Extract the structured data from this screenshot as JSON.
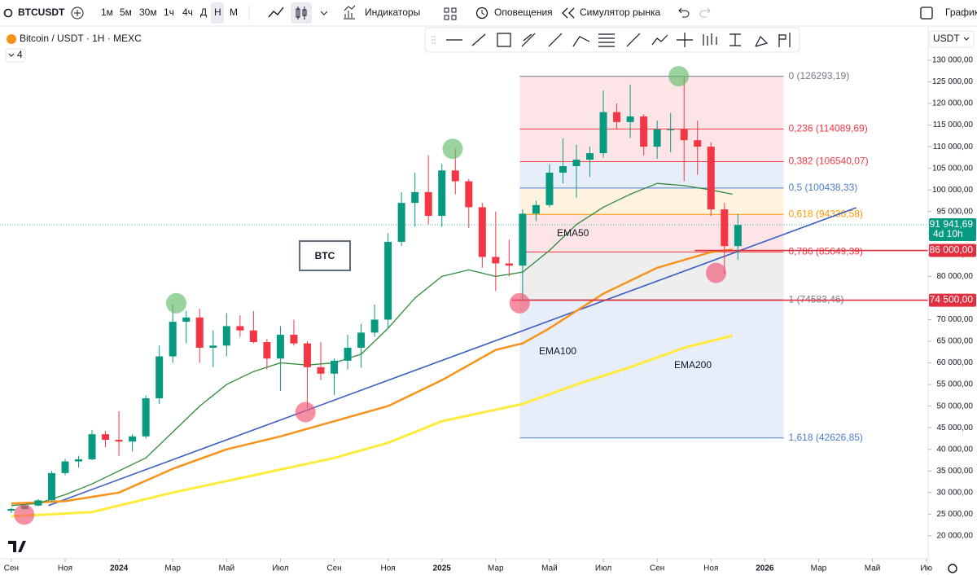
{
  "toolbar": {
    "symbol": "BTCUSDT",
    "intervals": [
      "1м",
      "5м",
      "30м",
      "1ч",
      "4ч",
      "Д",
      "Н",
      "М"
    ],
    "indicators": "Индикаторы",
    "alerts": "Оповещения",
    "replay": "Симулятор рынка",
    "layout": "График"
  },
  "legend": {
    "title": "Bitcoin / USDT · 1H · MEXC",
    "count": "4",
    "currency": "USDT"
  },
  "chart_data": {
    "type": "candlestick",
    "x": [
      0,
      0.5,
      1,
      1.5,
      2,
      2.5,
      3,
      3.5,
      4,
      4.5,
      5,
      5.5,
      6,
      6.5,
      7,
      7.5,
      8,
      8.5,
      9,
      9.5,
      10,
      10.5,
      11,
      11.5,
      12,
      12.5,
      13,
      13.5,
      14,
      14.5,
      15,
      15.5,
      16,
      16.5,
      17,
      17.5,
      18,
      18.5,
      19,
      19.5,
      20,
      20.5,
      21,
      21.5,
      22,
      22.5,
      23,
      23.5,
      24,
      24.5,
      25,
      25.5,
      26,
      26.5,
      27
    ],
    "open": [
      25800,
      26200,
      27000,
      28200,
      34500,
      37200,
      37700,
      43500,
      42200,
      41800,
      43000,
      51800,
      61500,
      69500,
      70500,
      63500,
      64000,
      68500,
      67500,
      64800,
      61000,
      66500,
      64500,
      59000,
      57500,
      60500,
      63500,
      67000,
      70000,
      88000,
      97000,
      99500,
      94000,
      104500,
      102000,
      96000,
      84500,
      83000,
      82500,
      94500,
      96500,
      104000,
      105500,
      107000,
      108500,
      118000,
      115700,
      117000,
      110000,
      114000,
      114000,
      111500,
      110000,
      95500,
      87000
    ],
    "high": [
      26500,
      27200,
      28500,
      35000,
      37800,
      38500,
      44500,
      44300,
      48800,
      43500,
      52500,
      64000,
      73500,
      72000,
      72500,
      67500,
      71500,
      71000,
      72000,
      65500,
      68500,
      70000,
      65000,
      64800,
      61000,
      66500,
      69000,
      73500,
      90000,
      99500,
      104000,
      108000,
      106000,
      109500,
      102500,
      97000,
      95000,
      88500,
      95500,
      97500,
      106000,
      111900,
      110500,
      110000,
      123000,
      120000,
      124400,
      117500,
      116000,
      117800,
      126200,
      116000,
      111000,
      97000,
      94500
    ],
    "low": [
      25200,
      26000,
      26800,
      28000,
      34000,
      35800,
      37500,
      40500,
      38500,
      39500,
      42500,
      50500,
      60000,
      64500,
      60000,
      59000,
      61500,
      66000,
      64500,
      58500,
      53500,
      64000,
      49500,
      56000,
      52600,
      58500,
      58900,
      66000,
      68000,
      87000,
      91500,
      92000,
      91500,
      99000,
      91200,
      82000,
      76600,
      80000,
      74500,
      92800,
      96000,
      101500,
      98200,
      103000,
      107500,
      114000,
      112000,
      108000,
      107200,
      108700,
      102000,
      103500,
      94000,
      80600,
      83800
    ],
    "close": [
      26200,
      27000,
      28200,
      34500,
      37200,
      37700,
      43500,
      42200,
      41800,
      43000,
      51800,
      61500,
      69500,
      70500,
      63500,
      64000,
      68500,
      67500,
      64800,
      61000,
      66500,
      64500,
      59000,
      57500,
      60500,
      63500,
      67000,
      70000,
      88000,
      97000,
      99500,
      94000,
      104500,
      102000,
      96000,
      84500,
      83000,
      82500,
      94500,
      96500,
      104000,
      105500,
      107000,
      108500,
      118000,
      115700,
      117000,
      110000,
      114000,
      114000,
      111500,
      110000,
      95500,
      87000,
      91900
    ],
    "up_color": "#089981",
    "down_color": "#f23645",
    "xlim": [
      -0.42,
      34.07
    ],
    "xticks": [
      {
        "value": 0,
        "label": "Сен"
      },
      {
        "value": 2,
        "label": "Ноя"
      },
      {
        "value": 4,
        "label": "2024"
      },
      {
        "value": 6,
        "label": "Мар"
      },
      {
        "value": 8,
        "label": "Май"
      },
      {
        "value": 10,
        "label": "Июл"
      },
      {
        "value": 12,
        "label": "Сен"
      },
      {
        "value": 14,
        "label": "Ноя"
      },
      {
        "value": 16,
        "label": "2025"
      },
      {
        "value": 18,
        "label": "Мар"
      },
      {
        "value": 20,
        "label": "Май"
      },
      {
        "value": 22,
        "label": "Июл"
      },
      {
        "value": 24,
        "label": "Сен"
      },
      {
        "value": 26,
        "label": "Ноя"
      },
      {
        "value": 28,
        "label": "2026"
      },
      {
        "value": 30,
        "label": "Мар"
      },
      {
        "value": 32,
        "label": "Май"
      },
      {
        "value": 34,
        "label": "Ию"
      }
    ],
    "ylim": [
      14700,
      137150
    ],
    "yticks": [
      {
        "value": 20000,
        "label": "20 000,00"
      },
      {
        "value": 25000,
        "label": "25 000,00"
      },
      {
        "value": 30000,
        "label": "30 000,00"
      },
      {
        "value": 35000,
        "label": "35 000,00"
      },
      {
        "value": 40000,
        "label": "40 000,00"
      },
      {
        "value": 45000,
        "label": "45 000,00"
      },
      {
        "value": 50000,
        "label": "50 000,00"
      },
      {
        "value": 55000,
        "label": "55 000,00"
      },
      {
        "value": 60000,
        "label": "60 000,00"
      },
      {
        "value": 65000,
        "label": "65 000,00"
      },
      {
        "value": 70000,
        "label": "70 000,00"
      },
      {
        "value": 75000,
        "label": "75 000,00"
      },
      {
        "value": 80000,
        "label": "80 000,00"
      },
      {
        "value": 85000,
        "label": "85 000,00"
      },
      {
        "value": 90000,
        "label": "90 000,00"
      },
      {
        "value": 95000,
        "label": "95 000,00"
      },
      {
        "value": 100000,
        "label": "100 000,00"
      },
      {
        "value": 105000,
        "label": "105 000,00"
      },
      {
        "value": 110000,
        "label": "110 000,00"
      },
      {
        "value": 115000,
        "label": "115 000,00"
      },
      {
        "value": 120000,
        "label": "120 000,00"
      },
      {
        "value": 125000,
        "label": "125 000,00"
      },
      {
        "value": 130000,
        "label": "130 000,00"
      }
    ],
    "series": [
      {
        "name": "EMA50",
        "color": "#2e8b3a",
        "width": 1.3,
        "x": [
          0,
          1,
          2,
          3,
          4,
          5,
          6,
          7,
          8,
          9,
          10,
          11,
          12,
          13,
          14,
          15,
          16,
          17,
          18,
          19,
          20,
          21,
          22,
          23,
          24,
          25,
          26,
          26.8
        ],
        "values": [
          27000,
          27500,
          29500,
          32000,
          35000,
          38000,
          44000,
          50000,
          55000,
          58000,
          60000,
          59500,
          60000,
          62000,
          68000,
          75000,
          80000,
          81500,
          80000,
          81000,
          86000,
          92000,
          96000,
          99000,
          101500,
          101000,
          100000,
          99000
        ]
      },
      {
        "name": "EMA100",
        "color": "#f7931a",
        "width": 2.5,
        "x": [
          0,
          2,
          4,
          6,
          8,
          10,
          12,
          14,
          16,
          18,
          19,
          20,
          22,
          24,
          26,
          26.8
        ],
        "values": [
          27500,
          28000,
          30000,
          35500,
          40000,
          43000,
          46500,
          50000,
          56000,
          63000,
          64500,
          68000,
          76000,
          82000,
          85600,
          86200
        ]
      },
      {
        "name": "EMA200",
        "color": "#ffeb3b",
        "width": 3,
        "x": [
          0,
          3,
          6,
          9,
          12,
          14,
          16,
          19,
          21,
          23,
          25,
          26.8
        ],
        "values": [
          24500,
          25500,
          30000,
          34000,
          38000,
          41500,
          46500,
          50500,
          55000,
          59000,
          63500,
          66300
        ]
      }
    ],
    "trendline": {
      "color": "#3d5fc4",
      "x": [
        1.38,
        31.4
      ],
      "values": [
        27000,
        95900
      ]
    },
    "fib": {
      "x": [
        18.9,
        28.7
      ],
      "levels": [
        {
          "value": 126293.19,
          "label": "0 (126293,19)",
          "color": "#787b86"
        },
        {
          "value": 114089.69,
          "label": "0,236 (114089,69)",
          "color": "#f23645"
        },
        {
          "value": 106540.07,
          "label": "0,382 (106540,07)",
          "color": "#f23645"
        },
        {
          "value": 100438.33,
          "label": "0,5 (100438,33)",
          "color": "#4a7fd0"
        },
        {
          "value": 94336.58,
          "label": "0,618 (94336,58)",
          "color": "#ff9800"
        },
        {
          "value": 85649.39,
          "label": "0,786 (85649,39)",
          "color": "#f23645"
        },
        {
          "value": 74583.46,
          "label": "1 (74583,46)",
          "color": "#787b86"
        },
        {
          "value": 42626.85,
          "label": "1,618 (42626,85)",
          "color": "#4a7fd0"
        }
      ]
    },
    "price_lines": [
      {
        "value": 86000,
        "label": "86 000,00",
        "x": 25.4,
        "color": "#e0303f"
      },
      {
        "value": 74500,
        "label": "74 500,00",
        "x": 18.6,
        "color": "#e0303f"
      }
    ],
    "last_price": {
      "value": 91941.69,
      "label": "91 941,69",
      "countdown": "4d 10h",
      "color": "#089981"
    },
    "markers": [
      {
        "x": 6.13,
        "value": 73800,
        "color": "#66bb6a"
      },
      {
        "x": 16.4,
        "value": 109500,
        "color": "#66bb6a"
      },
      {
        "x": 24.8,
        "value": 126300,
        "color": "#66bb6a"
      },
      {
        "x": 0.48,
        "value": 24900,
        "color": "#ef5370"
      },
      {
        "x": 10.93,
        "value": 48600,
        "color": "#ef5370"
      },
      {
        "x": 18.89,
        "value": 73800,
        "color": "#ef5370"
      },
      {
        "x": 26.19,
        "value": 80800,
        "color": "#ef5370"
      }
    ],
    "annotations": [
      "BTC"
    ]
  }
}
